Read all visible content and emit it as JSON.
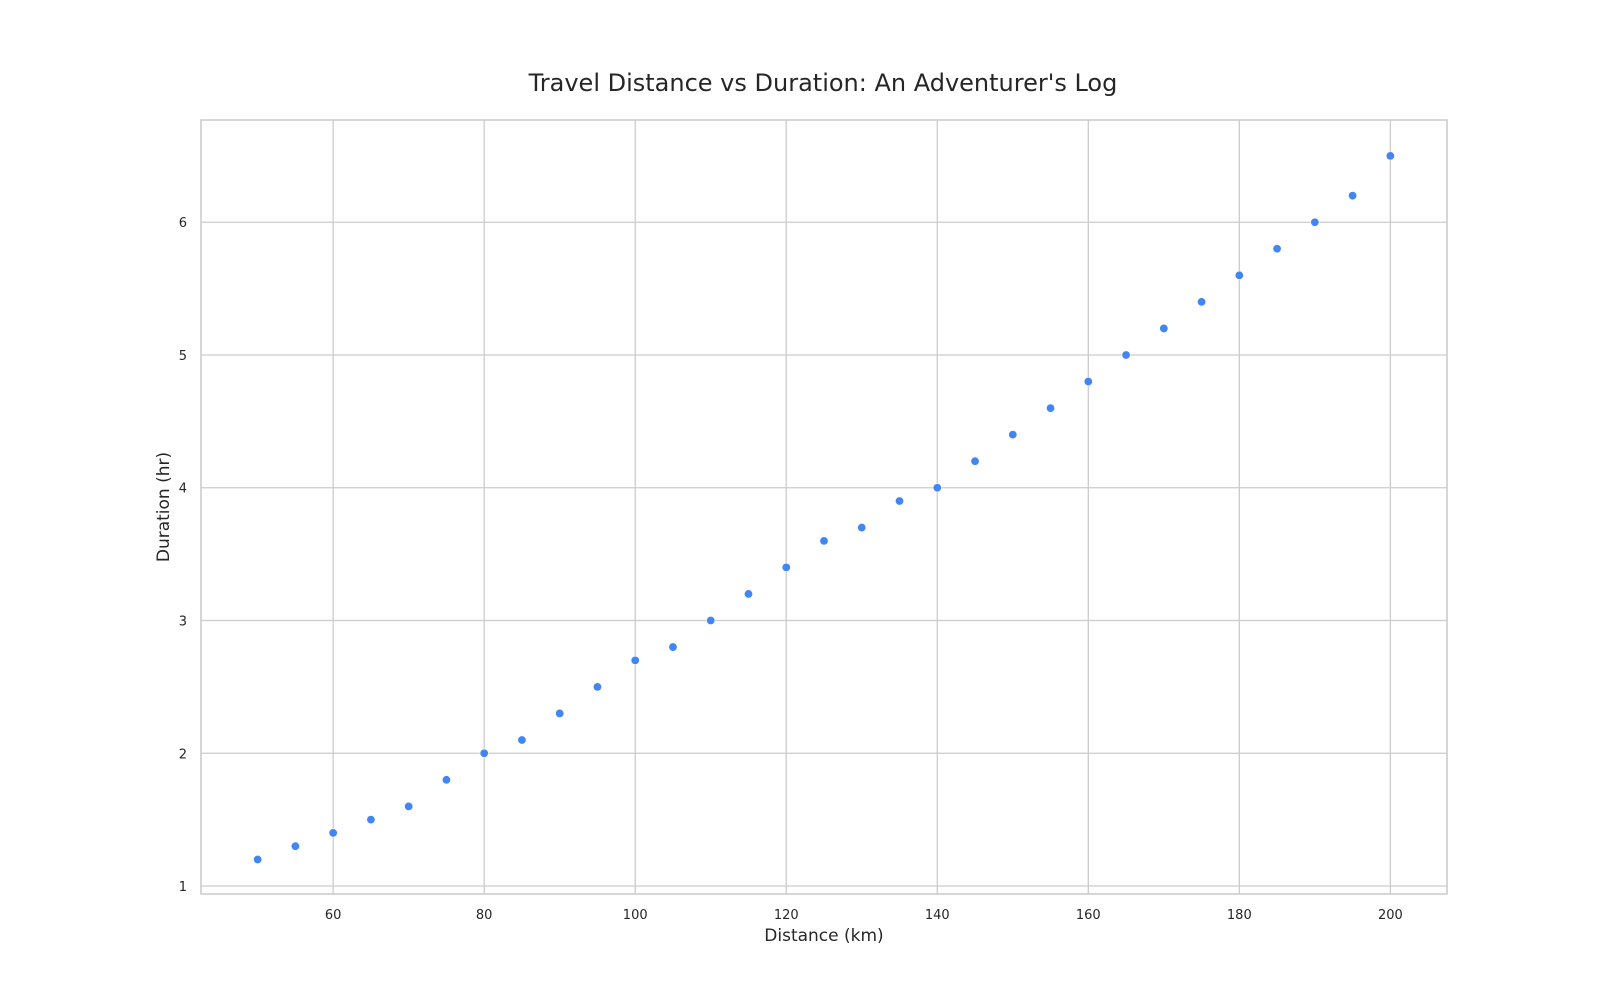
{
  "chart_data": {
    "type": "scatter",
    "title": "Travel Distance vs Duration: An Adventurer's Log",
    "xlabel": "Distance (km)",
    "ylabel": "Duration (hr)",
    "xlim": [
      42.5,
      207.5
    ],
    "ylim": [
      0.94,
      6.77
    ],
    "xticks": [
      60,
      80,
      100,
      120,
      140,
      160,
      180,
      200
    ],
    "yticks": [
      1,
      2,
      3,
      4,
      5,
      6
    ],
    "grid": true,
    "legend": "none",
    "colors": {
      "point": "#4285f4",
      "grid": "#cccccc",
      "text": "#262626",
      "background": "#ffffff"
    },
    "series": [
      {
        "x": [
          50,
          55,
          60,
          65,
          70,
          75,
          80,
          85,
          90,
          95,
          100,
          105,
          110,
          115,
          120,
          125,
          130,
          135,
          140,
          145,
          150,
          155,
          160,
          165,
          170,
          175,
          180,
          185,
          190,
          195,
          200
        ],
        "y": [
          1.2,
          1.3,
          1.4,
          1.5,
          1.6,
          1.8,
          2.0,
          2.1,
          2.3,
          2.5,
          2.7,
          2.8,
          3.0,
          3.2,
          3.4,
          3.6,
          3.7,
          3.9,
          4.0,
          4.2,
          4.4,
          4.6,
          4.8,
          5.0,
          5.2,
          5.4,
          5.6,
          5.8,
          6.0,
          6.2,
          6.5
        ]
      }
    ]
  }
}
